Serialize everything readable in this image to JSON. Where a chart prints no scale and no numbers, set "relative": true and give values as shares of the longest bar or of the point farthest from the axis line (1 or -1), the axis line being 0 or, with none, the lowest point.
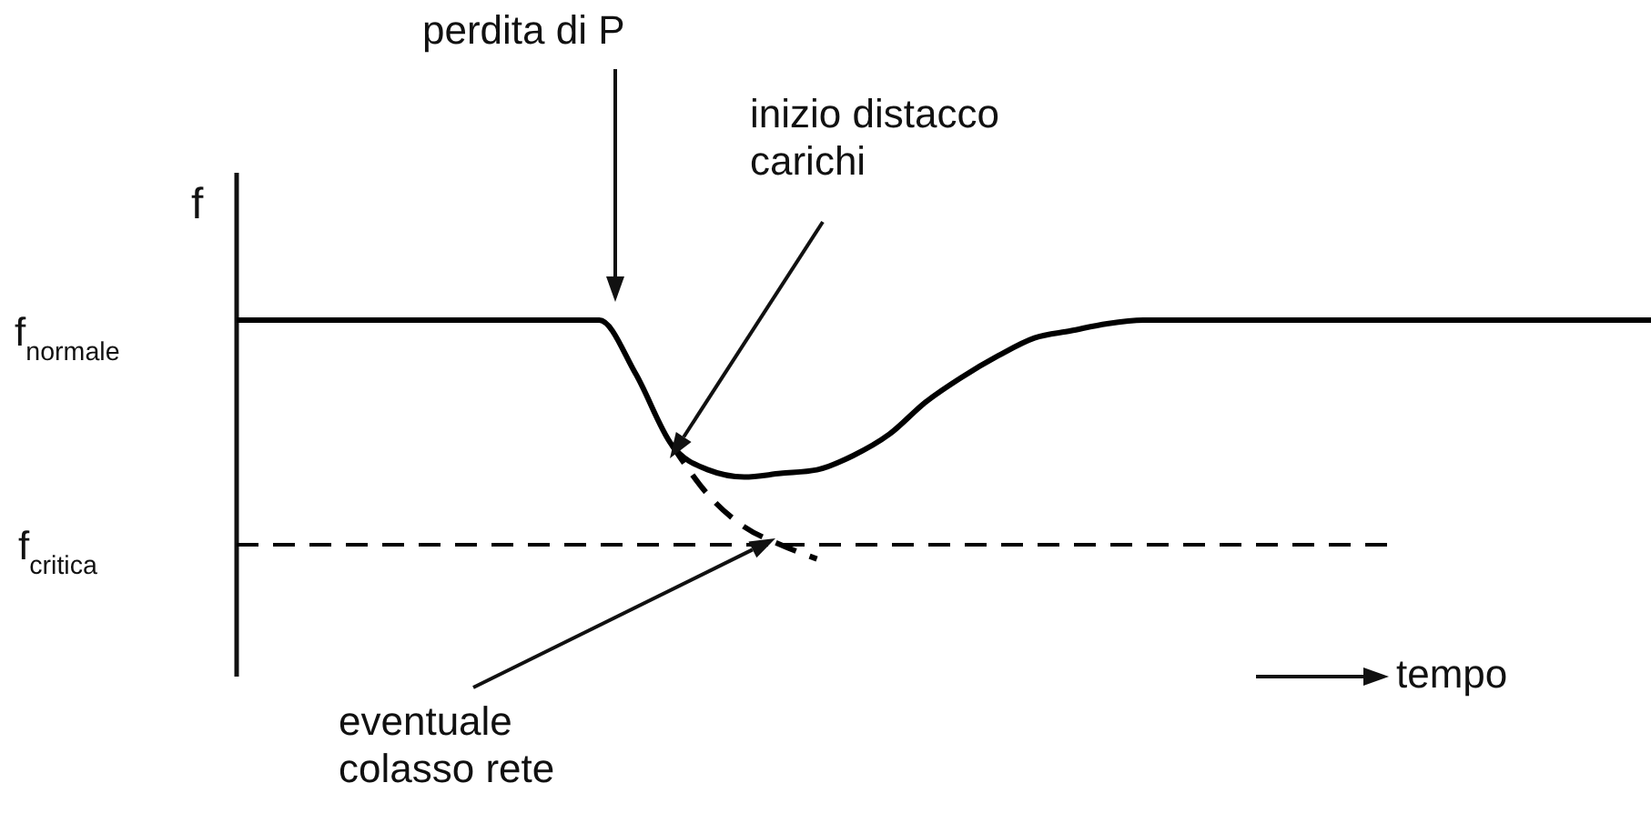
{
  "chart_data": {
    "type": "line",
    "relative": true,
    "ylabel": "f",
    "categories": [
      null,
      null,
      null,
      null,
      null,
      null,
      null,
      null,
      null,
      null,
      null,
      null,
      null,
      null,
      null,
      null,
      null,
      null,
      null,
      null,
      null,
      null,
      null,
      null,
      null,
      null,
      null,
      null,
      null,
      null,
      null,
      null,
      null,
      null,
      null,
      null,
      null,
      null,
      null,
      null
    ],
    "series": [
      {
        "color": "#000000",
        "line_style": "solid",
        "values": [
          1,
          1,
          1,
          1,
          1,
          1,
          1,
          1,
          1,
          1,
          1,
          0.85,
          0.65,
          0.58,
          0.56,
          0.57,
          0.58,
          0.62,
          0.68,
          0.77,
          0.84,
          0.9,
          0.95,
          0.97,
          0.99,
          1,
          1,
          1,
          1,
          1,
          1,
          1,
          1,
          1,
          1,
          1,
          1,
          1,
          1,
          1
        ]
      },
      {
        "color": "#000000",
        "line_style": "dashed",
        "values": [
          null,
          null,
          null,
          null,
          null,
          null,
          null,
          null,
          null,
          null,
          null,
          null,
          0.65,
          0.51,
          0.42,
          0.37,
          0.33,
          null,
          null,
          null,
          null,
          null,
          null,
          null,
          null,
          null,
          null,
          null,
          null,
          null,
          null,
          null,
          null,
          null,
          null,
          null,
          null,
          null,
          null,
          null
        ]
      }
    ],
    "ref_lines": [
      {
        "axis": "y",
        "value": 0.37,
        "label": "f$_{critica}$",
        "color": "#000000",
        "line_style": "dashed"
      }
    ],
    "annotations": [
      "f$_{normale}$",
      "perdita di P",
      "inizio distacco\ncarichi",
      "eventuale\ncolasso rete",
      "tempo"
    ]
  }
}
